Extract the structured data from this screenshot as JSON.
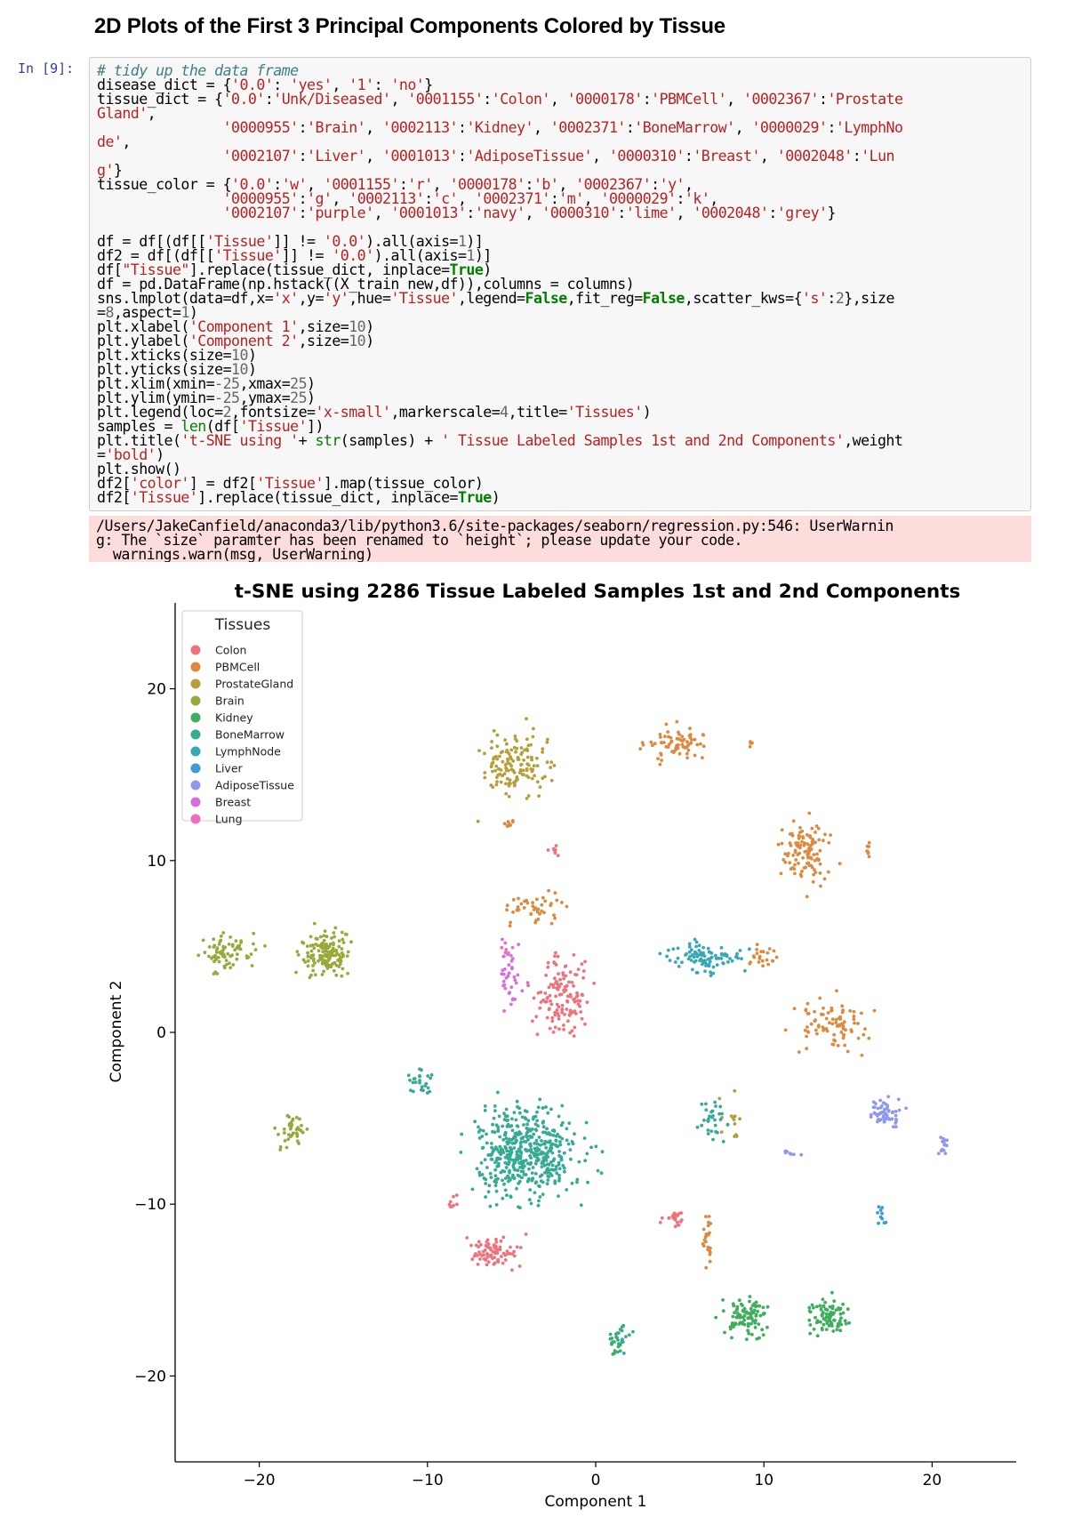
{
  "heading": "2D Plots of the First 3 Principal Components Colored by Tissue",
  "cell_prompt": "In [9]:",
  "code_lines": [
    [
      [
        "# tidy up the data frame",
        "cm"
      ]
    ],
    [
      [
        "disease_dict = {",
        ""
      ],
      [
        "'0.0'",
        "st"
      ],
      [
        ": ",
        ""
      ],
      [
        "'yes'",
        "st"
      ],
      [
        ", ",
        ""
      ],
      [
        "'1'",
        "st"
      ],
      [
        ": ",
        ""
      ],
      [
        "'no'",
        "st"
      ],
      [
        "}",
        ""
      ]
    ],
    [
      [
        "tissue_dict = {",
        ""
      ],
      [
        "'0.0'",
        "st"
      ],
      [
        ":",
        ""
      ],
      [
        "'Unk/Diseased'",
        "st"
      ],
      [
        ", ",
        ""
      ],
      [
        "'0001155'",
        "st"
      ],
      [
        ":",
        ""
      ],
      [
        "'Colon'",
        "st"
      ],
      [
        ", ",
        ""
      ],
      [
        "'0000178'",
        "st"
      ],
      [
        ":",
        ""
      ],
      [
        "'PBMCell'",
        "st"
      ],
      [
        ", ",
        ""
      ],
      [
        "'0002367'",
        "st"
      ],
      [
        ":",
        ""
      ],
      [
        "'Prostate",
        "st"
      ]
    ],
    [
      [
        "Gland'",
        "st"
      ],
      [
        ",",
        ""
      ]
    ],
    [
      [
        "               ",
        ""
      ],
      [
        "'0000955'",
        "st"
      ],
      [
        ":",
        ""
      ],
      [
        "'Brain'",
        "st"
      ],
      [
        ", ",
        ""
      ],
      [
        "'0002113'",
        "st"
      ],
      [
        ":",
        ""
      ],
      [
        "'Kidney'",
        "st"
      ],
      [
        ", ",
        ""
      ],
      [
        "'0002371'",
        "st"
      ],
      [
        ":",
        ""
      ],
      [
        "'BoneMarrow'",
        "st"
      ],
      [
        ", ",
        ""
      ],
      [
        "'0000029'",
        "st"
      ],
      [
        ":",
        ""
      ],
      [
        "'LymphNo",
        "st"
      ]
    ],
    [
      [
        "de'",
        "st"
      ],
      [
        ",",
        ""
      ]
    ],
    [
      [
        "               ",
        ""
      ],
      [
        "'0002107'",
        "st"
      ],
      [
        ":",
        ""
      ],
      [
        "'Liver'",
        "st"
      ],
      [
        ", ",
        ""
      ],
      [
        "'0001013'",
        "st"
      ],
      [
        ":",
        ""
      ],
      [
        "'AdiposeTissue'",
        "st"
      ],
      [
        ", ",
        ""
      ],
      [
        "'0000310'",
        "st"
      ],
      [
        ":",
        ""
      ],
      [
        "'Breast'",
        "st"
      ],
      [
        ", ",
        ""
      ],
      [
        "'0002048'",
        "st"
      ],
      [
        ":",
        ""
      ],
      [
        "'Lun",
        "st"
      ]
    ],
    [
      [
        "g'",
        "st"
      ],
      [
        "}",
        ""
      ]
    ],
    [
      [
        "tissue_color = {",
        ""
      ],
      [
        "'0.0'",
        "st"
      ],
      [
        ":",
        ""
      ],
      [
        "'w'",
        "st"
      ],
      [
        ", ",
        ""
      ],
      [
        "'0001155'",
        "st"
      ],
      [
        ":",
        ""
      ],
      [
        "'r'",
        "st"
      ],
      [
        ", ",
        ""
      ],
      [
        "'0000178'",
        "st"
      ],
      [
        ":",
        ""
      ],
      [
        "'b'",
        "st"
      ],
      [
        ", ",
        ""
      ],
      [
        "'0002367'",
        "st"
      ],
      [
        ":",
        ""
      ],
      [
        "'y'",
        "st"
      ],
      [
        ",",
        ""
      ]
    ],
    [
      [
        "               ",
        ""
      ],
      [
        "'0000955'",
        "st"
      ],
      [
        ":",
        ""
      ],
      [
        "'g'",
        "st"
      ],
      [
        ", ",
        ""
      ],
      [
        "'0002113'",
        "st"
      ],
      [
        ":",
        ""
      ],
      [
        "'c'",
        "st"
      ],
      [
        ", ",
        ""
      ],
      [
        "'0002371'",
        "st"
      ],
      [
        ":",
        ""
      ],
      [
        "'m'",
        "st"
      ],
      [
        ", ",
        ""
      ],
      [
        "'0000029'",
        "st"
      ],
      [
        ":",
        ""
      ],
      [
        "'k'",
        "st"
      ],
      [
        ",",
        ""
      ]
    ],
    [
      [
        "               ",
        ""
      ],
      [
        "'0002107'",
        "st"
      ],
      [
        ":",
        ""
      ],
      [
        "'purple'",
        "st"
      ],
      [
        ", ",
        ""
      ],
      [
        "'0001013'",
        "st"
      ],
      [
        ":",
        ""
      ],
      [
        "'navy'",
        "st"
      ],
      [
        ", ",
        ""
      ],
      [
        "'0000310'",
        "st"
      ],
      [
        ":",
        ""
      ],
      [
        "'lime'",
        "st"
      ],
      [
        ", ",
        ""
      ],
      [
        "'0002048'",
        "st"
      ],
      [
        ":",
        ""
      ],
      [
        "'grey'",
        "st"
      ],
      [
        "}",
        ""
      ]
    ],
    [
      [
        "",
        ""
      ]
    ],
    [
      [
        "df = df[(df[[",
        ""
      ],
      [
        "'Tissue'",
        "st"
      ],
      [
        "]] != ",
        ""
      ],
      [
        "'0.0'",
        "st"
      ],
      [
        ").all(axis=",
        ""
      ],
      [
        "1",
        "nu"
      ],
      [
        ")]",
        ""
      ]
    ],
    [
      [
        "df2 = df[(df[[",
        ""
      ],
      [
        "'Tissue'",
        "st"
      ],
      [
        "]] != ",
        ""
      ],
      [
        "'0.0'",
        "st"
      ],
      [
        ").all(axis=",
        ""
      ],
      [
        "1",
        "nu"
      ],
      [
        ")]",
        ""
      ]
    ],
    [
      [
        "df[",
        ""
      ],
      [
        "\"Tissue\"",
        "st"
      ],
      [
        "].replace(tissue_dict, inplace=",
        ""
      ],
      [
        "True",
        "kw"
      ],
      [
        ")",
        ""
      ]
    ],
    [
      [
        "df = pd.DataFrame(np.hstack((X_train_new,df)),columns = columns)",
        ""
      ]
    ],
    [
      [
        "sns.lmplot(data=df,x=",
        ""
      ],
      [
        "'x'",
        "st"
      ],
      [
        ",y=",
        ""
      ],
      [
        "'y'",
        "st"
      ],
      [
        ",hue=",
        ""
      ],
      [
        "'Tissue'",
        "st"
      ],
      [
        ",legend=",
        ""
      ],
      [
        "False",
        "kw"
      ],
      [
        ",fit_reg=",
        ""
      ],
      [
        "False",
        "kw"
      ],
      [
        ",scatter_kws={",
        ""
      ],
      [
        "'s'",
        "st"
      ],
      [
        ":",
        ""
      ],
      [
        "2",
        "nu"
      ],
      [
        "},size",
        ""
      ]
    ],
    [
      [
        "=",
        ""
      ],
      [
        "8",
        "nu"
      ],
      [
        ",aspect=",
        ""
      ],
      [
        "1",
        "nu"
      ],
      [
        ")",
        ""
      ]
    ],
    [
      [
        "plt.xlabel(",
        ""
      ],
      [
        "'Component 1'",
        "st"
      ],
      [
        ",size=",
        ""
      ],
      [
        "10",
        "nu"
      ],
      [
        ")",
        ""
      ]
    ],
    [
      [
        "plt.ylabel(",
        ""
      ],
      [
        "'Component 2'",
        "st"
      ],
      [
        ",size=",
        ""
      ],
      [
        "10",
        "nu"
      ],
      [
        ")",
        ""
      ]
    ],
    [
      [
        "plt.xticks(size=",
        ""
      ],
      [
        "10",
        "nu"
      ],
      [
        ")",
        ""
      ]
    ],
    [
      [
        "plt.yticks(size=",
        ""
      ],
      [
        "10",
        "nu"
      ],
      [
        ")",
        ""
      ]
    ],
    [
      [
        "plt.xlim(xmin=",
        ""
      ],
      [
        "-25",
        "nu"
      ],
      [
        ",xmax=",
        ""
      ],
      [
        "25",
        "nu"
      ],
      [
        ")",
        ""
      ]
    ],
    [
      [
        "plt.ylim(ymin=",
        ""
      ],
      [
        "-25",
        "nu"
      ],
      [
        ",ymax=",
        ""
      ],
      [
        "25",
        "nu"
      ],
      [
        ")",
        ""
      ]
    ],
    [
      [
        "plt.legend(loc=",
        ""
      ],
      [
        "2",
        "nu"
      ],
      [
        ",fontsize=",
        ""
      ],
      [
        "'x-small'",
        "st"
      ],
      [
        ",markerscale=",
        ""
      ],
      [
        "4",
        "nu"
      ],
      [
        ",title=",
        ""
      ],
      [
        "'Tissues'",
        "st"
      ],
      [
        ")",
        ""
      ]
    ],
    [
      [
        "samples = ",
        ""
      ],
      [
        "len",
        "bi"
      ],
      [
        "(df[",
        ""
      ],
      [
        "'Tissue'",
        "st"
      ],
      [
        "])",
        ""
      ]
    ],
    [
      [
        "plt.title(",
        ""
      ],
      [
        "'t-SNE using '",
        "st"
      ],
      [
        "+ ",
        ""
      ],
      [
        "str",
        "bi"
      ],
      [
        "(samples) + ",
        ""
      ],
      [
        "' Tissue Labeled Samples 1st and 2nd Components'",
        "st"
      ],
      [
        ",weight",
        ""
      ]
    ],
    [
      [
        "=",
        ""
      ],
      [
        "'bold'",
        "st"
      ],
      [
        ")",
        ""
      ]
    ],
    [
      [
        "plt.show()",
        ""
      ]
    ],
    [
      [
        "df2[",
        ""
      ],
      [
        "'color'",
        "st"
      ],
      [
        "] = df2[",
        ""
      ],
      [
        "'Tissue'",
        "st"
      ],
      [
        "].map(tissue_color)",
        ""
      ]
    ],
    [
      [
        "df2[",
        ""
      ],
      [
        "'Tissue'",
        "st"
      ],
      [
        "].replace(tissue_dict, inplace=",
        ""
      ],
      [
        "True",
        "kw"
      ],
      [
        ")",
        ""
      ]
    ]
  ],
  "stderr_lines": [
    "/Users/JakeCanfield/anaconda3/lib/python3.6/site-packages/seaborn/regression.py:546: UserWarnin",
    "g: The `size` paramter has been renamed to `height`; please update your code.",
    "  warnings.warn(msg, UserWarning)"
  ],
  "chart_data": {
    "type": "scatter",
    "title": "t-SNE using 2286 Tissue Labeled Samples 1st and 2nd Components",
    "xlabel": "Component 1",
    "ylabel": "Component 2",
    "xlim": [
      -25,
      25
    ],
    "ylim": [
      -25,
      25
    ],
    "xticks": [
      -20,
      -10,
      0,
      10,
      20
    ],
    "yticks": [
      -20,
      -10,
      0,
      10,
      20
    ],
    "xtick_labels": [
      "−20",
      "−10",
      "0",
      "10",
      "20"
    ],
    "ytick_labels": [
      "−20",
      "−10",
      "0",
      "10",
      "20"
    ],
    "grid": false,
    "legend": {
      "title": "Tissues",
      "placement": "upper-left"
    },
    "series": [
      {
        "name": "Colon",
        "color": "#f0727d",
        "clusters": [
          {
            "cx": -1.8,
            "cy": 1.8,
            "sx": 1.6,
            "sy": 2.2,
            "n": 130
          },
          {
            "cx": -6.0,
            "cy": -12.8,
            "sx": 1.5,
            "sy": 0.8,
            "n": 80
          },
          {
            "cx": 4.8,
            "cy": -10.8,
            "sx": 0.6,
            "sy": 0.4,
            "n": 22
          },
          {
            "cx": -8.5,
            "cy": -10.0,
            "sx": 0.6,
            "sy": 0.6,
            "n": 8
          },
          {
            "cx": -2.5,
            "cy": 10.7,
            "sx": 0.3,
            "sy": 0.4,
            "n": 8
          }
        ]
      },
      {
        "name": "PBMCell",
        "color": "#dd8a3e",
        "clusters": [
          {
            "cx": 4.8,
            "cy": 16.8,
            "sx": 1.8,
            "sy": 1.0,
            "n": 70
          },
          {
            "cx": 12.5,
            "cy": 10.5,
            "sx": 1.3,
            "sy": 1.6,
            "n": 110
          },
          {
            "cx": 14.0,
            "cy": 0.5,
            "sx": 2.2,
            "sy": 1.3,
            "n": 85
          },
          {
            "cx": -3.5,
            "cy": 7.2,
            "sx": 1.6,
            "sy": 0.8,
            "n": 45
          },
          {
            "cx": 10.0,
            "cy": 4.4,
            "sx": 0.8,
            "sy": 0.8,
            "n": 22
          },
          {
            "cx": 6.7,
            "cy": -12.0,
            "sx": 0.3,
            "sy": 1.4,
            "n": 25
          },
          {
            "cx": -5.3,
            "cy": 12.1,
            "sx": 0.4,
            "sy": 0.3,
            "n": 10
          },
          {
            "cx": 16.3,
            "cy": 10.3,
            "sx": 0.2,
            "sy": 0.5,
            "n": 8
          },
          {
            "cx": 9.2,
            "cy": 16.8,
            "sx": 0.2,
            "sy": 0.2,
            "n": 4
          }
        ]
      },
      {
        "name": "ProstateGland",
        "color": "#b59f3a",
        "clusters": [
          {
            "cx": -4.8,
            "cy": 15.5,
            "sx": 2.0,
            "sy": 1.8,
            "n": 140
          },
          {
            "cx": 8.2,
            "cy": -5.0,
            "sx": 0.6,
            "sy": 1.2,
            "n": 14
          }
        ]
      },
      {
        "name": "Brain",
        "color": "#99a93a",
        "clusters": [
          {
            "cx": -22.0,
            "cy": 4.6,
            "sx": 1.6,
            "sy": 1.0,
            "n": 75
          },
          {
            "cx": -16.0,
            "cy": 4.6,
            "sx": 1.3,
            "sy": 1.1,
            "n": 150
          },
          {
            "cx": -18.0,
            "cy": -5.8,
            "sx": 0.7,
            "sy": 0.9,
            "n": 40
          }
        ]
      },
      {
        "name": "Kidney",
        "color": "#3dae5c",
        "clusters": [
          {
            "cx": 9.0,
            "cy": -16.5,
            "sx": 1.2,
            "sy": 1.0,
            "n": 90
          },
          {
            "cx": 13.8,
            "cy": -16.6,
            "sx": 1.1,
            "sy": 1.0,
            "n": 85
          },
          {
            "cx": 1.2,
            "cy": -18.0,
            "sx": 0.5,
            "sy": 0.9,
            "n": 18
          }
        ]
      },
      {
        "name": "BoneMarrow",
        "color": "#35ab94",
        "clusters": [
          {
            "cx": -4.0,
            "cy": -7.0,
            "sx": 2.9,
            "sy": 2.5,
            "n": 480
          },
          {
            "cx": -10.5,
            "cy": -2.8,
            "sx": 0.6,
            "sy": 0.8,
            "n": 25
          },
          {
            "cx": 7.0,
            "cy": -5.0,
            "sx": 0.7,
            "sy": 1.3,
            "n": 30
          },
          {
            "cx": 1.5,
            "cy": -17.8,
            "sx": 0.5,
            "sy": 0.8,
            "n": 15
          }
        ]
      },
      {
        "name": "LymphNode",
        "color": "#39a8b5",
        "clusters": [
          {
            "cx": 6.5,
            "cy": 4.4,
            "sx": 1.8,
            "sy": 0.8,
            "n": 95
          }
        ]
      },
      {
        "name": "Liver",
        "color": "#3a9bd6",
        "clusters": [
          {
            "cx": 17.0,
            "cy": -10.8,
            "sx": 0.3,
            "sy": 0.6,
            "n": 10
          }
        ]
      },
      {
        "name": "AdiposeTissue",
        "color": "#9098ea",
        "clusters": [
          {
            "cx": 17.2,
            "cy": -4.8,
            "sx": 0.8,
            "sy": 0.8,
            "n": 60
          },
          {
            "cx": 20.7,
            "cy": -6.5,
            "sx": 0.3,
            "sy": 0.5,
            "n": 14
          },
          {
            "cx": 11.5,
            "cy": -7.0,
            "sx": 0.8,
            "sy": 0.15,
            "n": 7
          }
        ]
      },
      {
        "name": "Breast",
        "color": "#d56ee0",
        "clusters": [
          {
            "cx": -5.0,
            "cy": 3.2,
            "sx": 0.7,
            "sy": 2.0,
            "n": 35
          }
        ]
      },
      {
        "name": "Lung",
        "color": "#ee6cc1",
        "clusters": [
          {
            "cx": -5.5,
            "cy": 4.8,
            "sx": 0.5,
            "sy": 0.6,
            "n": 8
          }
        ]
      }
    ]
  }
}
